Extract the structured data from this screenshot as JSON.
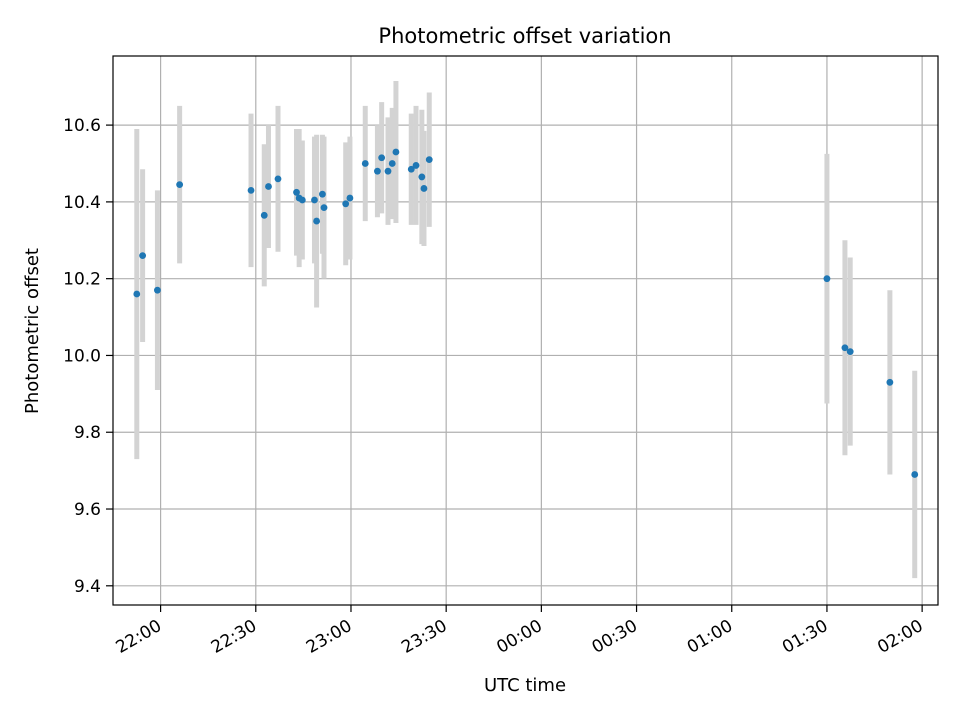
{
  "chart_data": {
    "type": "scatter",
    "title": "Photometric offset variation",
    "xlabel": "UTC time",
    "ylabel": "Photometric offset",
    "x_unit": "UTC time of night (hh:mm)",
    "xlim": [
      "21:45",
      "02:05"
    ],
    "ylim": [
      9.35,
      10.78
    ],
    "grid": true,
    "point_color": "#1f77b4",
    "errorbar_color": "#d3d3d3",
    "x_ticks": [
      "22:00",
      "22:30",
      "23:00",
      "23:30",
      "00:00",
      "00:30",
      "01:00",
      "01:30",
      "02:00"
    ],
    "y_ticks": [
      "9.4",
      "9.6",
      "9.8",
      "10.0",
      "10.2",
      "10.4",
      "10.6"
    ],
    "points": [
      {
        "x": "21:52:30",
        "y": 10.16,
        "err": 0.43
      },
      {
        "x": "21:54:20",
        "y": 10.26,
        "err": 0.225
      },
      {
        "x": "21:59:00",
        "y": 10.17,
        "err": 0.26
      },
      {
        "x": "22:06:00",
        "y": 10.445,
        "err": 0.205
      },
      {
        "x": "22:28:30",
        "y": 10.43,
        "err": 0.2
      },
      {
        "x": "22:32:40",
        "y": 10.365,
        "err": 0.185
      },
      {
        "x": "22:34:00",
        "y": 10.44,
        "err": 0.16
      },
      {
        "x": "22:37:00",
        "y": 10.46,
        "err": 0.19
      },
      {
        "x": "22:42:50",
        "y": 10.425,
        "err": 0.165
      },
      {
        "x": "22:43:40",
        "y": 10.41,
        "err": 0.18
      },
      {
        "x": "22:44:40",
        "y": 10.405,
        "err": 0.155
      },
      {
        "x": "22:48:30",
        "y": 10.405,
        "err": 0.165
      },
      {
        "x": "22:49:10",
        "y": 10.35,
        "err": 0.225
      },
      {
        "x": "22:51:00",
        "y": 10.42,
        "err": 0.155
      },
      {
        "x": "22:51:30",
        "y": 10.385,
        "err": 0.185
      },
      {
        "x": "22:58:20",
        "y": 10.395,
        "err": 0.16
      },
      {
        "x": "22:59:40",
        "y": 10.41,
        "err": 0.16
      },
      {
        "x": "23:04:30",
        "y": 10.5,
        "err": 0.15
      },
      {
        "x": "23:08:20",
        "y": 10.48,
        "err": 0.12
      },
      {
        "x": "23:09:40",
        "y": 10.515,
        "err": 0.145
      },
      {
        "x": "23:11:40",
        "y": 10.48,
        "err": 0.14
      },
      {
        "x": "23:13:00",
        "y": 10.5,
        "err": 0.145
      },
      {
        "x": "23:14:10",
        "y": 10.53,
        "err": 0.185
      },
      {
        "x": "23:19:00",
        "y": 10.485,
        "err": 0.145
      },
      {
        "x": "23:20:30",
        "y": 10.495,
        "err": 0.155
      },
      {
        "x": "23:22:20",
        "y": 10.465,
        "err": 0.175
      },
      {
        "x": "23:23:00",
        "y": 10.435,
        "err": 0.15
      },
      {
        "x": "23:24:40",
        "y": 10.51,
        "err": 0.175
      },
      {
        "x": "01:30:00",
        "y": 10.2,
        "err": 0.325
      },
      {
        "x": "01:35:40",
        "y": 10.02,
        "err": 0.28
      },
      {
        "x": "01:37:20",
        "y": 10.01,
        "err": 0.245
      },
      {
        "x": "01:49:50",
        "y": 9.93,
        "err": 0.24
      },
      {
        "x": "01:57:40",
        "y": 9.69,
        "err": 0.27
      }
    ]
  }
}
